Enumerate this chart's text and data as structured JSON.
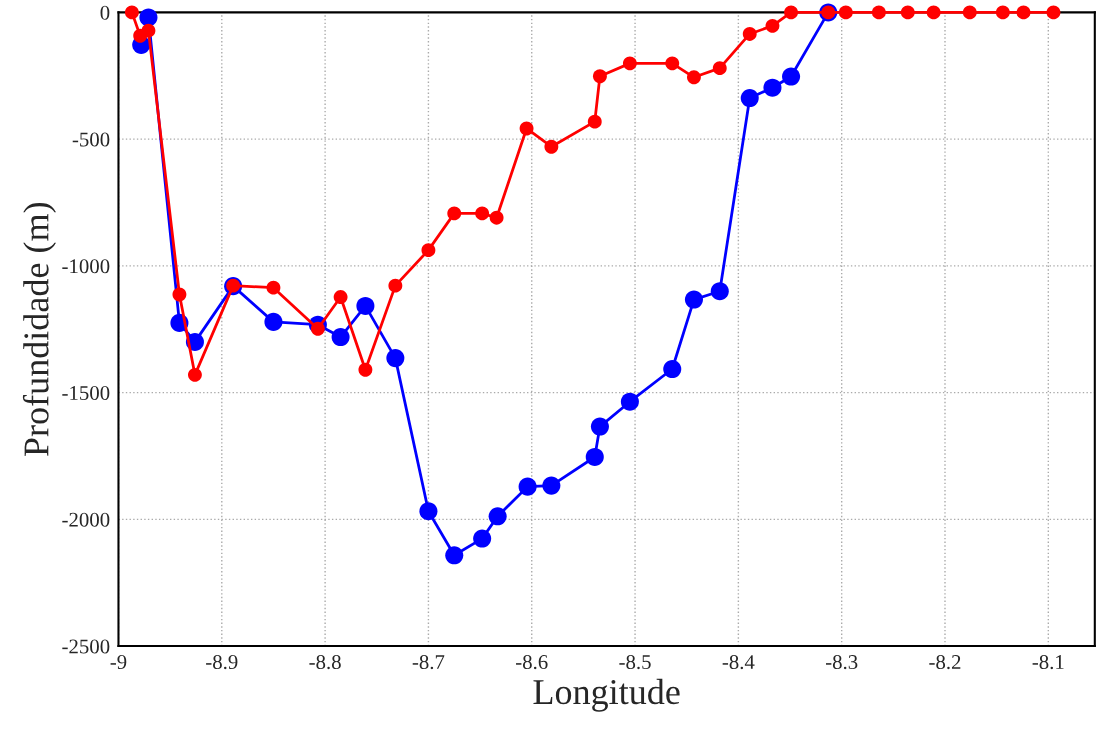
{
  "chart_data": {
    "type": "line",
    "xlabel": "Longitude",
    "ylabel": "Profundidade (m)",
    "xlim": [
      -9,
      -8.055
    ],
    "xticks": [
      -9,
      -8.9,
      -8.8,
      -8.7,
      -8.6,
      -8.5,
      -8.4,
      -8.3,
      -8.2,
      -8.1
    ],
    "ylim": [
      -2500,
      0
    ],
    "yticks": [
      -2500,
      -2000,
      -1500,
      -1000,
      -500,
      0
    ],
    "grid": true,
    "marker": "circle",
    "line_style": "solid",
    "series": [
      {
        "color": "#0000ff",
        "x": [
          -8.978,
          -8.971,
          -8.941,
          -8.926,
          -8.889,
          -8.85,
          -8.807,
          -8.785,
          -8.761,
          -8.732,
          -8.7,
          -8.675,
          -8.648,
          -8.633,
          -8.604,
          -8.581,
          -8.539,
          -8.534,
          -8.505,
          -8.464,
          -8.443,
          -8.418,
          -8.389,
          -8.367,
          -8.349,
          -8.313
        ],
        "values": [
          -128,
          -20,
          -1225,
          -1300,
          -1080,
          -1221,
          -1232,
          -1281,
          -1158,
          -1364,
          -1968,
          -2142,
          -2076,
          -1988,
          -1871,
          -1867,
          -1754,
          -1634,
          -1536,
          -1407,
          -1133,
          -1100,
          -338,
          -297,
          -253,
          0
        ]
      },
      {
        "color": "#ff0000",
        "x": [
          -8.987,
          -8.979,
          -8.971,
          -8.941,
          -8.926,
          -8.889,
          -8.85,
          -8.807,
          -8.785,
          -8.761,
          -8.732,
          -8.7,
          -8.675,
          -8.648,
          -8.634,
          -8.605,
          -8.581,
          -8.539,
          -8.534,
          -8.505,
          -8.464,
          -8.443,
          -8.418,
          -8.389,
          -8.367,
          -8.349,
          -8.313,
          -8.296,
          -8.264,
          -8.236,
          -8.211,
          -8.176,
          -8.144,
          -8.124,
          -8.095
        ],
        "values": [
          0,
          -92,
          -72,
          -1113,
          -1430,
          -1078,
          -1086,
          -1248,
          -1123,
          -1410,
          -1078,
          -938,
          -793,
          -793,
          -810,
          -458,
          -530,
          -431,
          -252,
          -201,
          -201,
          -256,
          -220,
          -85,
          -53,
          0,
          0,
          0,
          0,
          0,
          0,
          0,
          0,
          0,
          0
        ]
      }
    ]
  }
}
